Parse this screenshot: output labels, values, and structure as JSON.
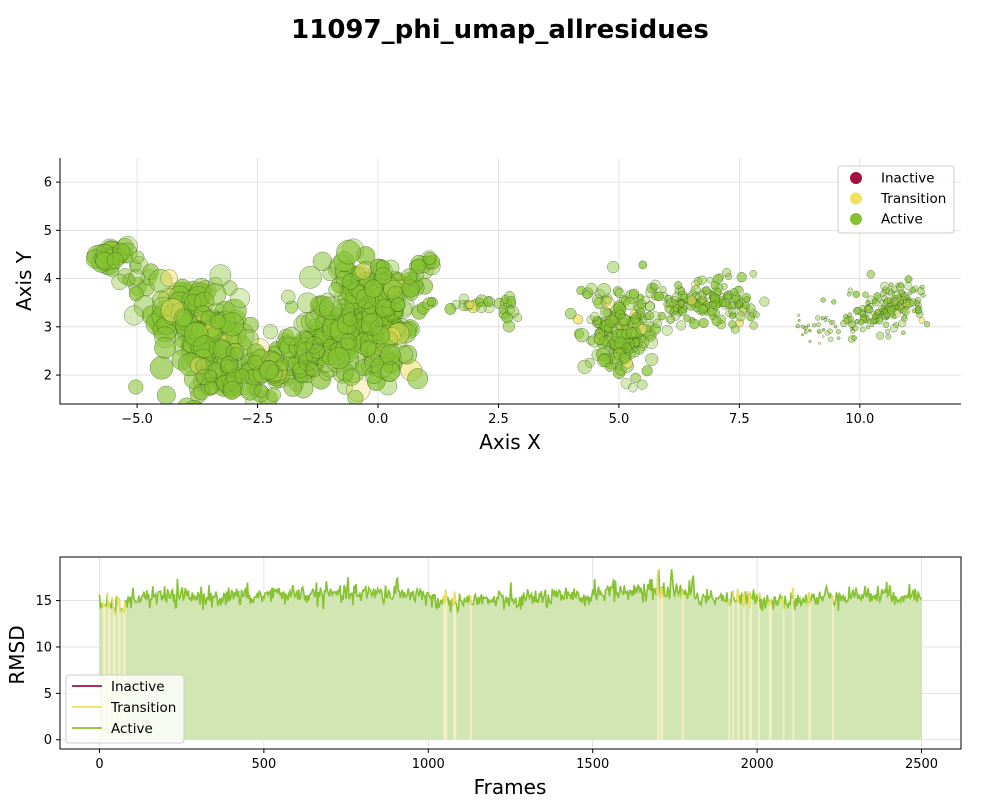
{
  "figure_title": "11097_phi_umap_allresidues",
  "colors": {
    "inactive": "#a50f3e",
    "transition": "#f0e060",
    "active": "#86c232",
    "point_edge": "#2b4a10",
    "fill_active": "#d2e6b4",
    "fill_transition": "#f3efc2"
  },
  "chart_data": [
    {
      "type": "scatter",
      "title": "",
      "xlabel": "Axis X",
      "ylabel": "Axis Y",
      "xlim": [
        -6.6,
        12.1
      ],
      "ylim": [
        1.4,
        6.5
      ],
      "xticks": [
        -5.0,
        -2.5,
        0.0,
        2.5,
        5.0,
        7.5,
        10.0
      ],
      "xtick_labels": [
        "−5.0",
        "−2.5",
        "0.0",
        "2.5",
        "5.0",
        "7.5",
        "10.0"
      ],
      "yticks": [
        2,
        3,
        4,
        5,
        6
      ],
      "ytick_labels": [
        "2",
        "3",
        "4",
        "5",
        "6"
      ],
      "grid": true,
      "legend": {
        "placement": "upper-right",
        "entries": [
          {
            "label": "Inactive",
            "color": "#a50f3e"
          },
          {
            "label": "Transition",
            "color": "#f0e060"
          },
          {
            "label": "Active",
            "color": "#86c232"
          }
        ]
      },
      "clusters": [
        {
          "x": -5.5,
          "y": 4.5,
          "sx": 0.2,
          "sy": 0.12,
          "n": 24,
          "r": [
            8,
            11
          ]
        },
        {
          "x": -5.0,
          "y": 4.2,
          "sx": 0.3,
          "sy": 0.25,
          "n": 16,
          "r": [
            6,
            9
          ]
        },
        {
          "x": -4.1,
          "y": 3.3,
          "sx": 0.35,
          "sy": 0.3,
          "n": 55,
          "r": [
            8,
            12
          ]
        },
        {
          "x": -3.5,
          "y": 2.6,
          "sx": 0.45,
          "sy": 0.55,
          "n": 110,
          "r": [
            7,
            12
          ]
        },
        {
          "x": -3.0,
          "y": 1.9,
          "sx": 0.4,
          "sy": 0.25,
          "n": 45,
          "r": [
            6,
            10
          ]
        },
        {
          "x": -2.2,
          "y": 2.2,
          "sx": 0.5,
          "sy": 0.25,
          "n": 60,
          "r": [
            6,
            10
          ]
        },
        {
          "x": -1.2,
          "y": 2.6,
          "sx": 0.5,
          "sy": 0.4,
          "n": 80,
          "r": [
            6,
            10
          ]
        },
        {
          "x": -0.4,
          "y": 3.3,
          "sx": 0.45,
          "sy": 0.55,
          "n": 120,
          "r": [
            7,
            12
          ]
        },
        {
          "x": 0.1,
          "y": 2.8,
          "sx": 0.35,
          "sy": 0.55,
          "n": 80,
          "r": [
            7,
            11
          ]
        },
        {
          "x": 0.3,
          "y": 3.8,
          "sx": 0.4,
          "sy": 0.3,
          "n": 45,
          "r": [
            6,
            10
          ]
        },
        {
          "x": 1.0,
          "y": 4.2,
          "sx": 0.12,
          "sy": 0.15,
          "n": 12,
          "r": [
            6,
            9
          ]
        },
        {
          "x": 2.0,
          "y": 3.5,
          "sx": 0.4,
          "sy": 0.08,
          "n": 22,
          "r": [
            4,
            6
          ]
        },
        {
          "x": 2.7,
          "y": 3.4,
          "sx": 0.1,
          "sy": 0.15,
          "n": 10,
          "r": [
            4,
            6
          ]
        },
        {
          "x": 4.6,
          "y": 3.3,
          "sx": 0.25,
          "sy": 0.4,
          "n": 30,
          "r": [
            4,
            6
          ]
        },
        {
          "x": 5.1,
          "y": 2.8,
          "sx": 0.35,
          "sy": 0.4,
          "n": 130,
          "r": [
            4,
            7
          ]
        },
        {
          "x": 6.3,
          "y": 3.5,
          "sx": 0.6,
          "sy": 0.25,
          "n": 110,
          "r": [
            3,
            5
          ]
        },
        {
          "x": 7.4,
          "y": 3.5,
          "sx": 0.35,
          "sy": 0.25,
          "n": 55,
          "r": [
            3,
            5
          ]
        },
        {
          "x": 9.2,
          "y": 3.0,
          "sx": 0.3,
          "sy": 0.18,
          "n": 30,
          "r": [
            1,
            2.5
          ]
        },
        {
          "x": 10.3,
          "y": 3.3,
          "sx": 0.4,
          "sy": 0.3,
          "n": 90,
          "r": [
            2,
            4
          ]
        },
        {
          "x": 10.9,
          "y": 3.5,
          "sx": 0.25,
          "sy": 0.2,
          "n": 60,
          "r": [
            2,
            4
          ]
        }
      ]
    },
    {
      "type": "line",
      "title": "",
      "xlabel": "Frames",
      "ylabel": "RMSD",
      "xlim": [
        -120,
        2620
      ],
      "ylim": [
        -1,
        19.7
      ],
      "xticks": [
        0,
        500,
        1000,
        1500,
        2000,
        2500
      ],
      "xtick_labels": [
        "0",
        "500",
        "1000",
        "1500",
        "2000",
        "2500"
      ],
      "yticks": [
        0,
        5,
        10,
        15
      ],
      "ytick_labels": [
        "0",
        "5",
        "10",
        "15"
      ],
      "grid": true,
      "legend": {
        "placement": "lower-left",
        "entries": [
          {
            "label": "Inactive",
            "color": "#a50f3e"
          },
          {
            "label": "Transition",
            "color": "#f0e060"
          },
          {
            "label": "Active",
            "color": "#86c232"
          }
        ]
      },
      "frames": [
        0,
        2500
      ],
      "segments": [
        {
          "start": 0,
          "end": 100,
          "level": 14.5
        },
        {
          "start": 100,
          "end": 500,
          "level": 15.4
        },
        {
          "start": 500,
          "end": 1000,
          "level": 15.7
        },
        {
          "start": 1000,
          "end": 1300,
          "level": 15.0
        },
        {
          "start": 1300,
          "end": 1500,
          "level": 15.3
        },
        {
          "start": 1500,
          "end": 1800,
          "level": 16.0
        },
        {
          "start": 1800,
          "end": 1900,
          "level": 15.4
        },
        {
          "start": 1900,
          "end": 2200,
          "level": 15.1
        },
        {
          "start": 2200,
          "end": 2500,
          "level": 15.6
        }
      ],
      "peaks": [
        {
          "frame": 905,
          "value": 17.9
        },
        {
          "frame": 1700,
          "value": 18.8
        },
        {
          "frame": 1740,
          "value": 18.4
        },
        {
          "frame": 1805,
          "value": 18.1
        }
      ],
      "transition_frames": [
        15,
        30,
        45,
        60,
        75,
        1050,
        1055,
        1080,
        1130,
        1700,
        1710,
        1775,
        1915,
        1928,
        1942,
        1960,
        1980,
        2005,
        2040,
        2080,
        2110,
        2160,
        2230
      ],
      "noise": 0.55
    }
  ]
}
